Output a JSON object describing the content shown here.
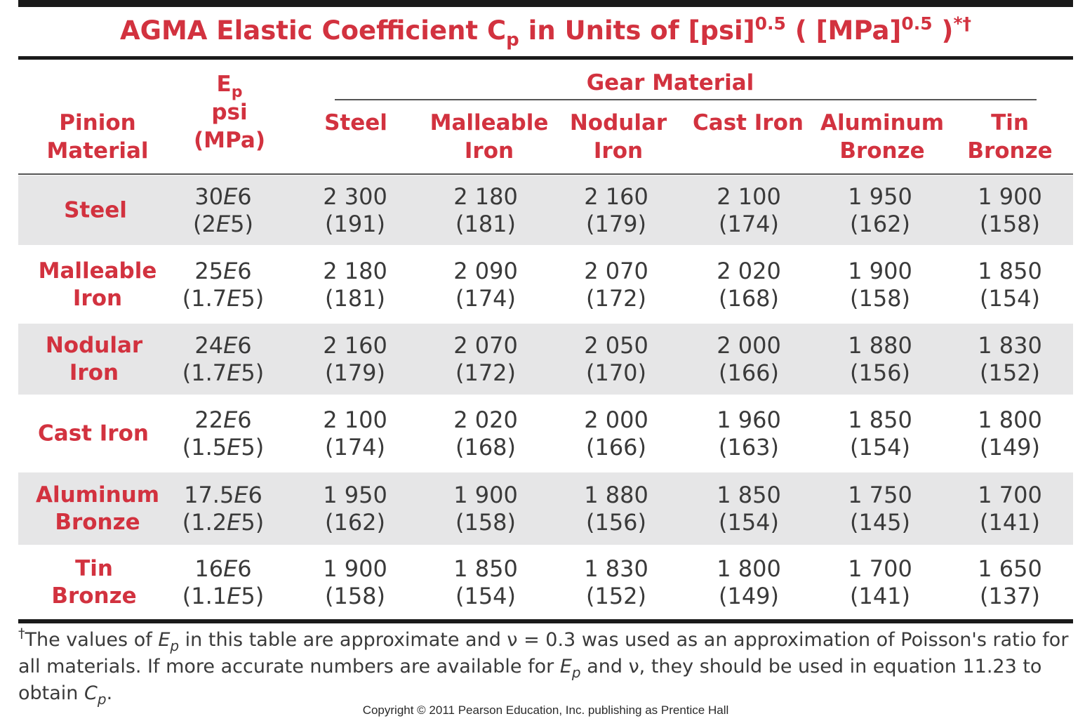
{
  "title": {
    "text_a": "AGMA Elastic Coefficient C",
    "sub_p": "p",
    "text_b": " in Units of [psi]",
    "exp1": "0.5",
    "text_c": "  ( [MPa]",
    "exp2": "0.5",
    "text_d": " )",
    "marks": "*†"
  },
  "header": {
    "pinion_l1": "Pinion",
    "pinion_l2": "Material",
    "ep_main": "E",
    "ep_sub": "p",
    "ep_l2": "psi",
    "ep_l3": "(MPa)",
    "group": "Gear Material",
    "columns": [
      {
        "l1": "Steel",
        "l2": ""
      },
      {
        "l1": "Malleable",
        "l2": "Iron"
      },
      {
        "l1": "Nodular",
        "l2": "Iron"
      },
      {
        "l1": "Cast Iron",
        "l2": ""
      },
      {
        "l1": "Aluminum",
        "l2": "Bronze"
      },
      {
        "l1": "Tin",
        "l2": "Bronze"
      }
    ]
  },
  "rows": [
    {
      "name_l1": "Steel",
      "name_l2": "",
      "ep_psi_m": "30",
      "ep_psi_e": "6",
      "ep_mpa_m": "2",
      "ep_mpa_e": "5",
      "values": [
        [
          "2 300",
          "(191)"
        ],
        [
          "2 180",
          "(181)"
        ],
        [
          "2 160",
          "(179)"
        ],
        [
          "2 100",
          "(174)"
        ],
        [
          "1 950",
          "(162)"
        ],
        [
          "1 900",
          "(158)"
        ]
      ]
    },
    {
      "name_l1": "Malleable",
      "name_l2": "Iron",
      "ep_psi_m": "25",
      "ep_psi_e": "6",
      "ep_mpa_m": "1.7",
      "ep_mpa_e": "5",
      "values": [
        [
          "2 180",
          "(181)"
        ],
        [
          "2 090",
          "(174)"
        ],
        [
          "2 070",
          "(172)"
        ],
        [
          "2 020",
          "(168)"
        ],
        [
          "1 900",
          "(158)"
        ],
        [
          "1 850",
          "(154)"
        ]
      ]
    },
    {
      "name_l1": "Nodular",
      "name_l2": "Iron",
      "ep_psi_m": "24",
      "ep_psi_e": "6",
      "ep_mpa_m": "1.7",
      "ep_mpa_e": "5",
      "values": [
        [
          "2 160",
          "(179)"
        ],
        [
          "2 070",
          "(172)"
        ],
        [
          "2 050",
          "(170)"
        ],
        [
          "2 000",
          "(166)"
        ],
        [
          "1 880",
          "(156)"
        ],
        [
          "1 830",
          "(152)"
        ]
      ]
    },
    {
      "name_l1": "Cast Iron",
      "name_l2": "",
      "ep_psi_m": "22",
      "ep_psi_e": "6",
      "ep_mpa_m": "1.5",
      "ep_mpa_e": "5",
      "values": [
        [
          "2 100",
          "(174)"
        ],
        [
          "2 020",
          "(168)"
        ],
        [
          "2 000",
          "(166)"
        ],
        [
          "1 960",
          "(163)"
        ],
        [
          "1 850",
          "(154)"
        ],
        [
          "1 800",
          "(149)"
        ]
      ]
    },
    {
      "name_l1": "Aluminum",
      "name_l2": "Bronze",
      "ep_psi_m": "17.5",
      "ep_psi_e": "6",
      "ep_mpa_m": "1.2",
      "ep_mpa_e": "5",
      "values": [
        [
          "1 950",
          "(162)"
        ],
        [
          "1 900",
          "(158)"
        ],
        [
          "1 880",
          "(156)"
        ],
        [
          "1 850",
          "(154)"
        ],
        [
          "1 750",
          "(145)"
        ],
        [
          "1 700",
          "(141)"
        ]
      ]
    },
    {
      "name_l1": "Tin",
      "name_l2": "Bronze",
      "ep_psi_m": "16",
      "ep_psi_e": "6",
      "ep_mpa_m": "1.1",
      "ep_mpa_e": "5",
      "values": [
        [
          "1 900",
          "(158)"
        ],
        [
          "1 850",
          "(154)"
        ],
        [
          "1 830",
          "(152)"
        ],
        [
          "1 800",
          "(149)"
        ],
        [
          "1 700",
          "(141)"
        ],
        [
          "1 650",
          "(137)"
        ]
      ]
    }
  ],
  "footnote": {
    "mark": "†",
    "t1": "The values of ",
    "E": "E",
    "p": "p",
    "t2": " in this table are approximate and ν = 0.3 was used as an approximation of Poisson's ratio for all materials.  If more accurate numbers are available for ",
    "t3": " and ν, they should be used in equation 11.23 to obtain ",
    "C": "C",
    "t4": "."
  },
  "copyright": "Copyright © 2011 Pearson Education, Inc. publishing as Prentice Hall",
  "colors": {
    "accent_red": "#d2323f",
    "shade": "#e6e6e7",
    "rule": "#1a1a1a"
  }
}
